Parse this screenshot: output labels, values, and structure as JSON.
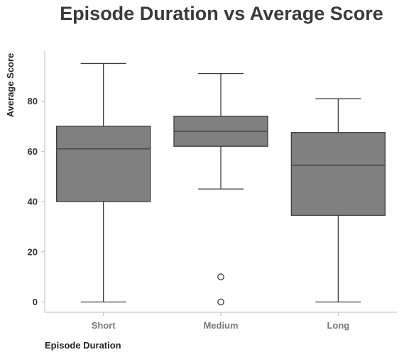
{
  "chart_data": {
    "type": "box",
    "title": "Episode Duration vs Average Score",
    "xlabel": "Episode Duration",
    "ylabel": "Average Score",
    "categories": [
      "Short",
      "Medium",
      "Long"
    ],
    "boxes": [
      {
        "category": "Short",
        "whisker_low": 0,
        "q1": 40,
        "median": 61,
        "q3": 70,
        "whisker_high": 95,
        "outliers": []
      },
      {
        "category": "Medium",
        "whisker_low": 45,
        "q1": 62,
        "median": 68,
        "q3": 74,
        "whisker_high": 91,
        "outliers": [
          10,
          0
        ]
      },
      {
        "category": "Long",
        "whisker_low": 0,
        "q1": 34.5,
        "median": 54.5,
        "q3": 67.5,
        "whisker_high": 81,
        "outliers": []
      }
    ],
    "yticks": [
      0,
      20,
      40,
      60,
      80
    ],
    "ylim": [
      -4,
      99
    ],
    "grid": false,
    "box_color": "#808080",
    "line_color": "#3d3d3d"
  }
}
